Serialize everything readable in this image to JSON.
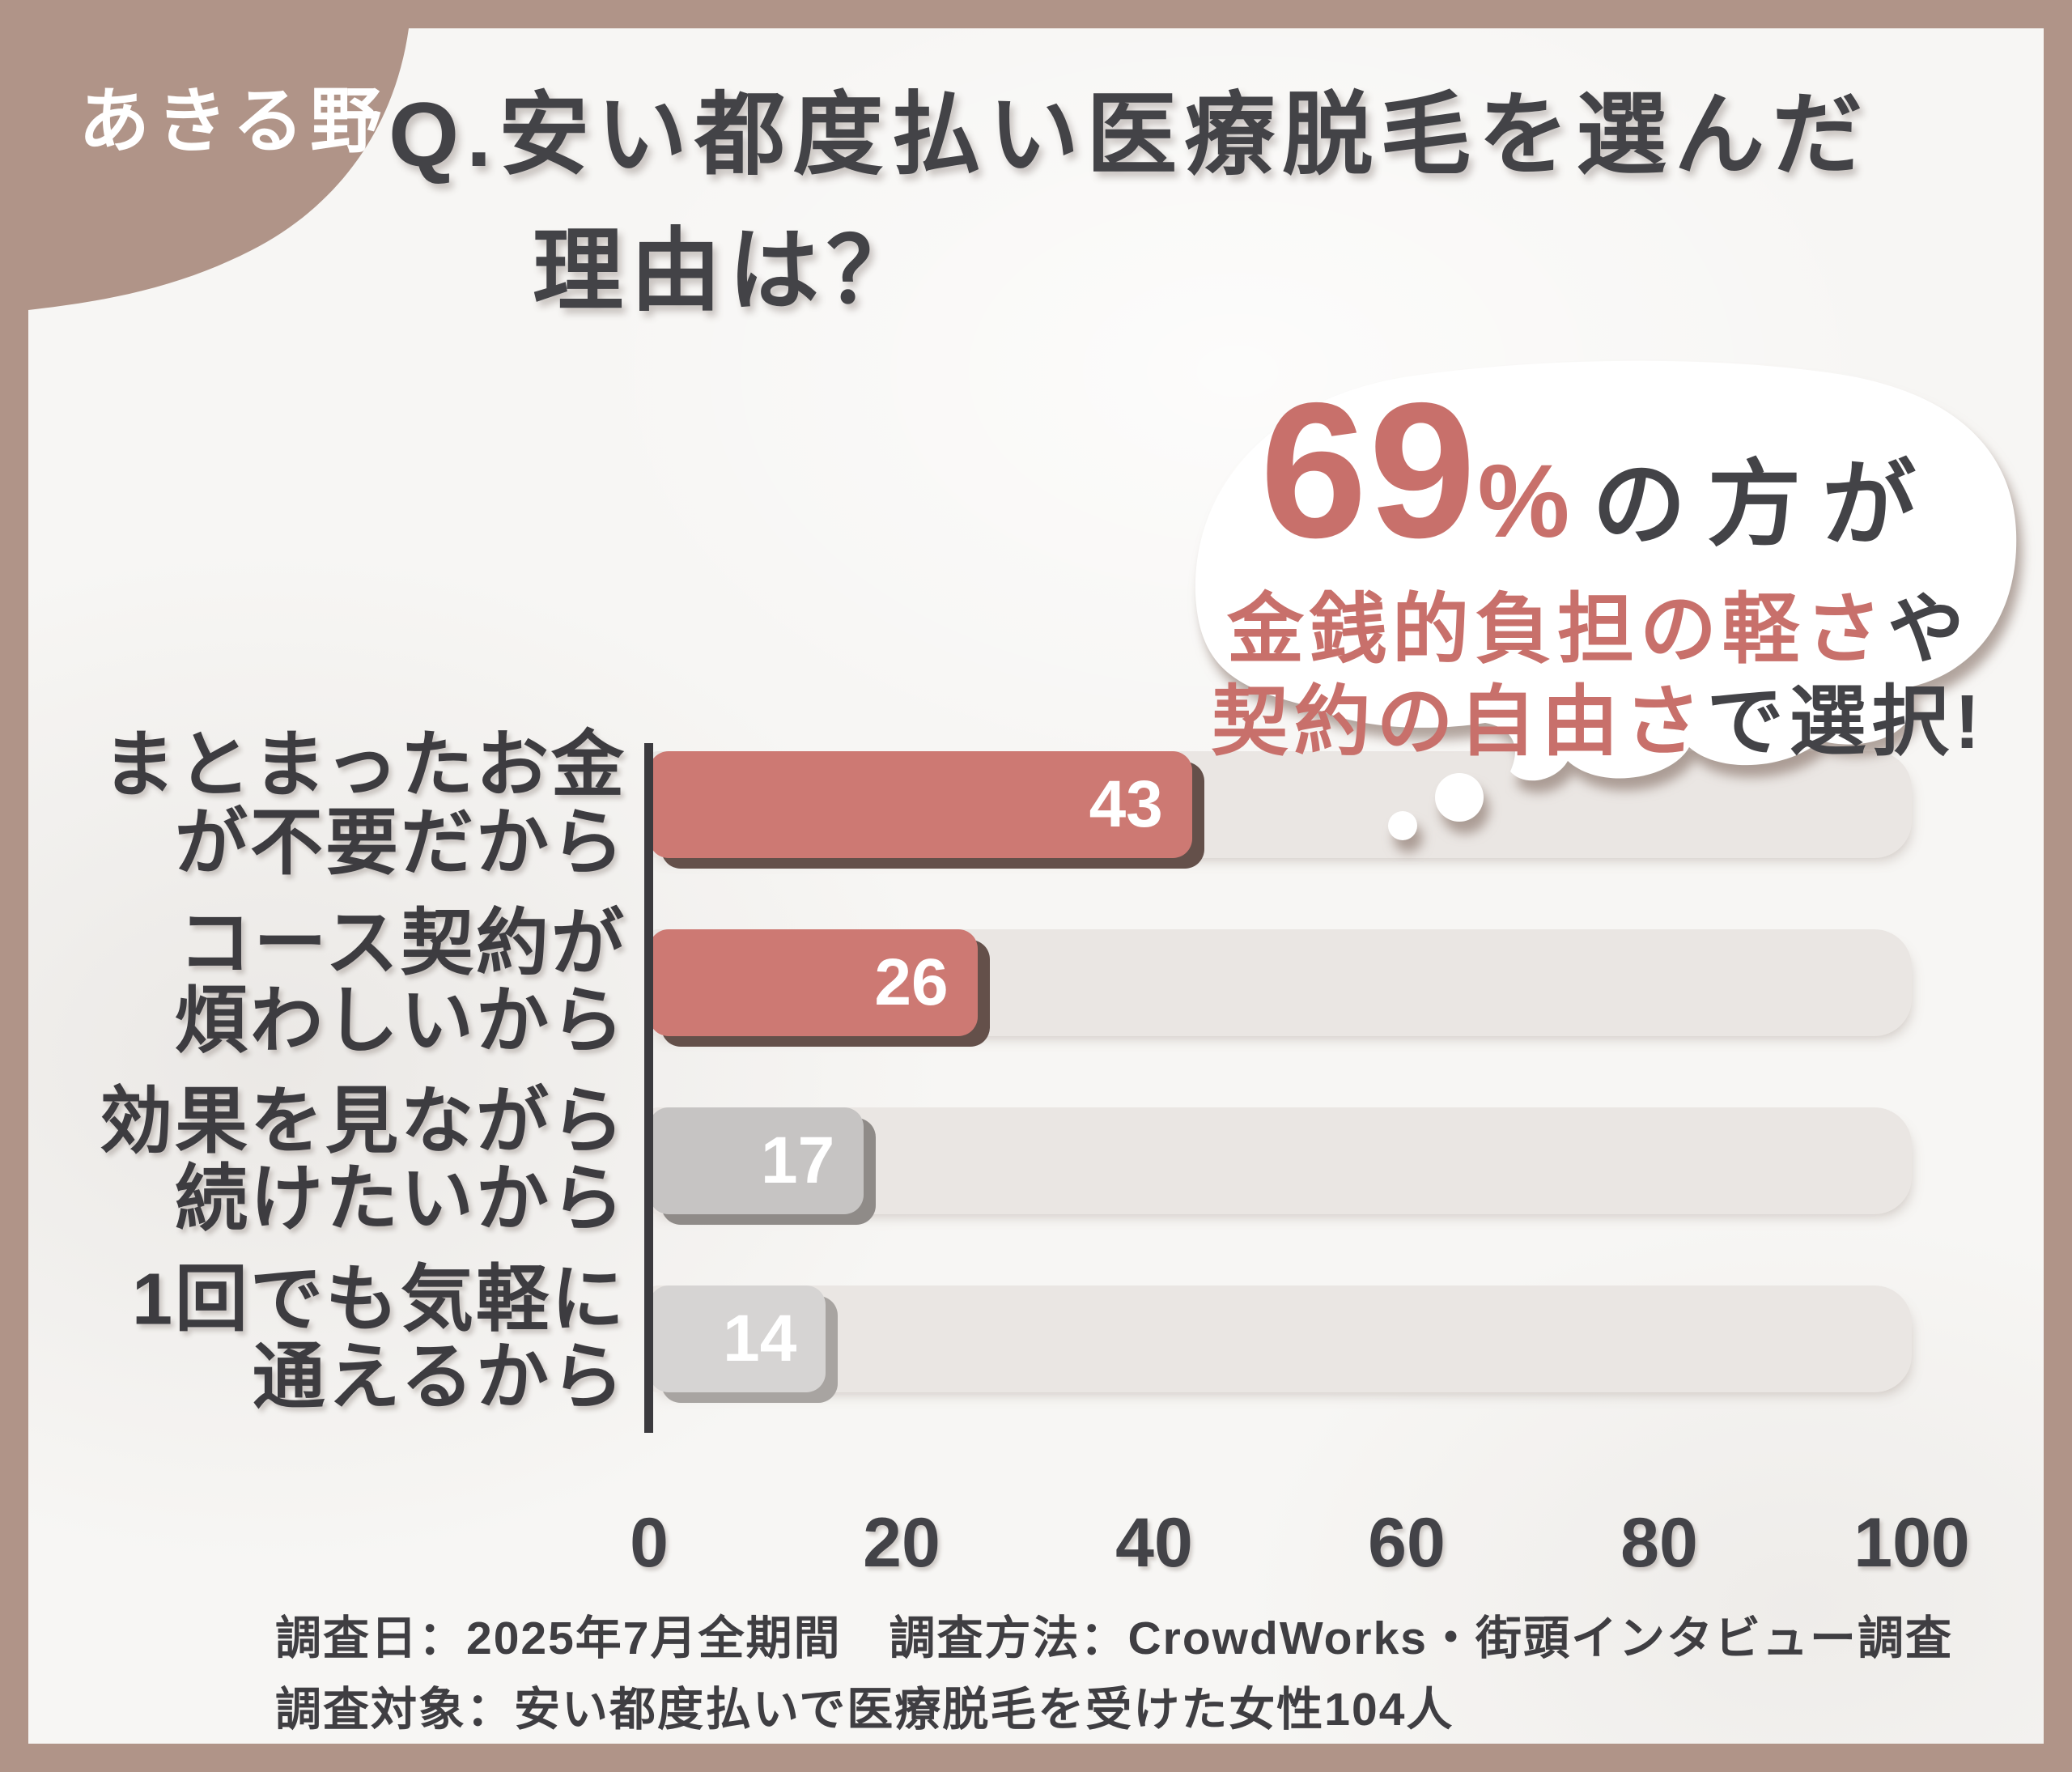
{
  "brand": {
    "name": "あきる野"
  },
  "title": {
    "line1": "Q.安い都度払い医療脱毛を選んだ",
    "line2": "理由は？"
  },
  "bubble": {
    "stat_value": "69",
    "stat_unit": "%",
    "line1_suffix": "の方が",
    "line2_accent": "金銭的負担の軽さ",
    "line2_suffix": "や",
    "line3_accent": "契約の自由さ",
    "line3_suffix": "で選択!"
  },
  "chart_data": {
    "type": "bar",
    "orientation": "horizontal",
    "title": "Q.安い都度払い医療脱毛を選んだ理由は？",
    "categories": [
      [
        "まとまったお金",
        "が不要だから"
      ],
      [
        "コース契約が",
        "煩わしいから"
      ],
      [
        "効果を見ながら",
        "続けたいから"
      ],
      [
        "1回でも気軽に",
        "通えるから"
      ]
    ],
    "values": [
      43,
      26,
      17,
      14
    ],
    "xlim": [
      0,
      100
    ],
    "x_ticks": [
      0,
      20,
      40,
      60,
      80,
      100
    ],
    "grid": false,
    "legend": false,
    "bar_colors": [
      "#cd7973",
      "#cd7973",
      "#c6c4c3",
      "#d6d4d3"
    ],
    "bar_shadow_colors": [
      "#64504a",
      "#64504a",
      "#8f8b88",
      "#a8a4a1"
    ],
    "value_label_color": "#ffffff",
    "track_color": "#eae6e3"
  },
  "highlight_note": "69%の方が金銭的負担の軽さや契約の自由さで選択!",
  "footer": {
    "line1": "調査日：2025年7月全期間　調査方法：CrowdWorks・街頭インタビュー調査",
    "line2": "調査対象：安い都度払いで医療脱毛を受けた女性104人"
  },
  "colors": {
    "frame": "#b09488",
    "accent": "#c8706b",
    "dark": "#434347",
    "track": "#eae6e3",
    "paper": "#f7f6f4"
  }
}
